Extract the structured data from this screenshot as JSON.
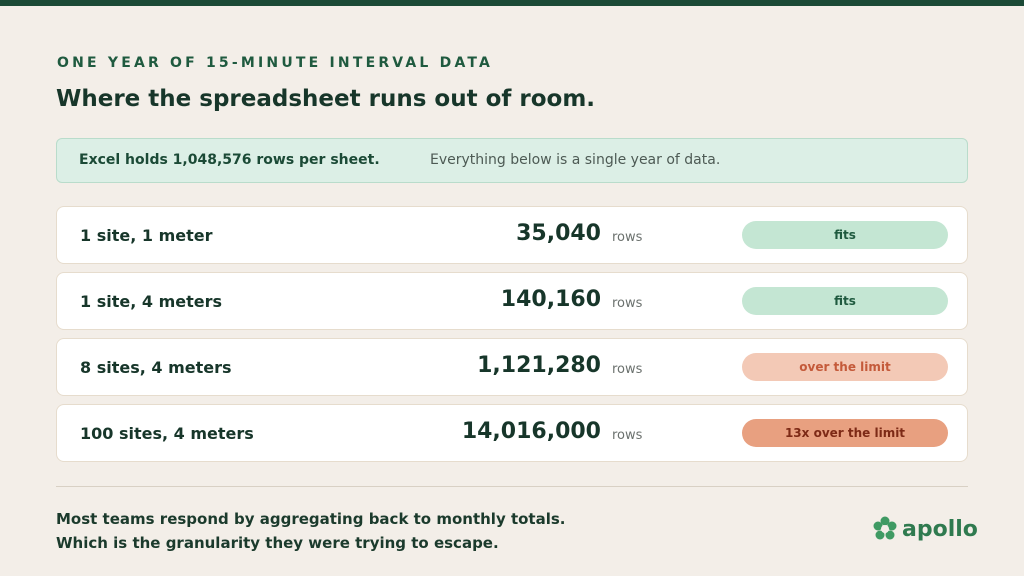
{
  "header": {
    "eyebrow": "ONE YEAR OF 15-MINUTE INTERVAL DATA",
    "title": "Where the spreadsheet runs out of room."
  },
  "callout": {
    "lead": "Excel holds 1,048,576 rows per sheet.",
    "note": "Everything below is a single year of data."
  },
  "rows": [
    {
      "label": "1 site, 1 meter",
      "count": "35,040",
      "unit": "rows",
      "status": "fits"
    },
    {
      "label": "1 site, 4 meters",
      "count": "140,160",
      "unit": "rows",
      "status": "fits"
    },
    {
      "label": "8 sites, 4 meters",
      "count": "1,121,280",
      "unit": "rows",
      "status": "over the limit"
    },
    {
      "label": "100 sites, 4 meters",
      "count": "14,016,000",
      "unit": "rows",
      "status": "13x over the limit"
    }
  ],
  "footer": {
    "lines": [
      "Most teams respond by aggregating back to monthly totals.",
      "Which is the granularity they were trying to escape."
    ],
    "logo": "apollo"
  }
}
